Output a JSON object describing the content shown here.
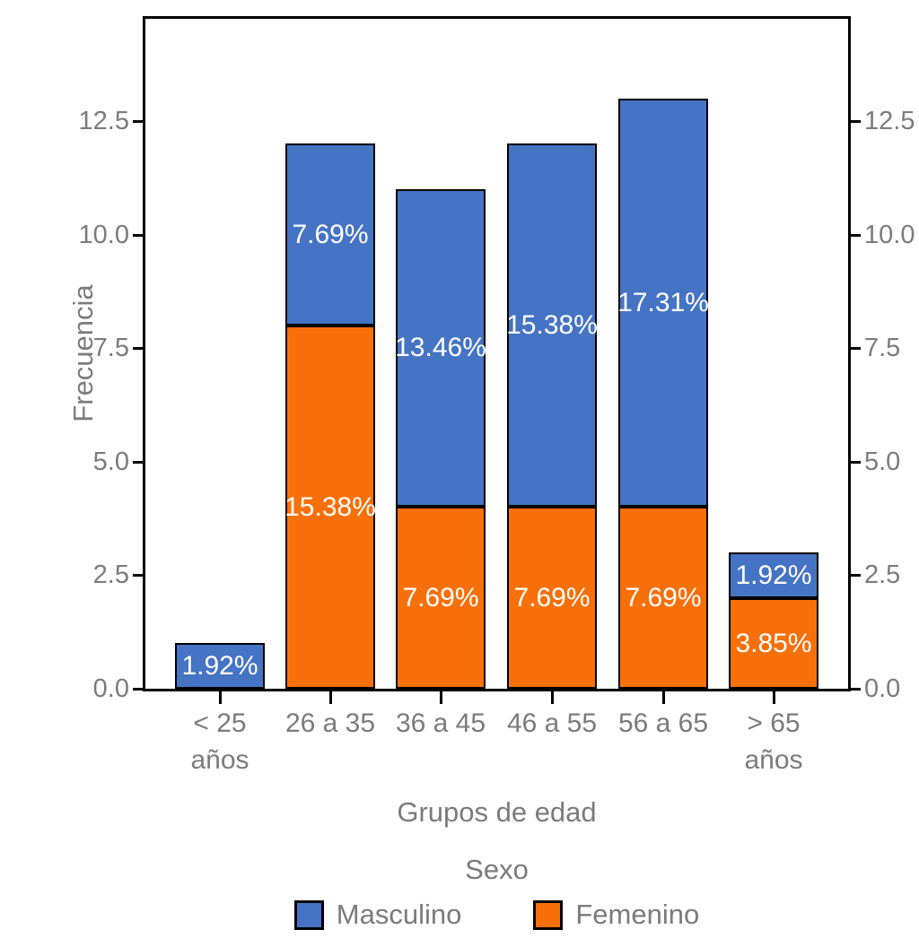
{
  "chart_data": {
    "type": "bar",
    "stacked": true,
    "orientation": "vertical",
    "title": "",
    "xlabel": "Grupos de edad",
    "ylabel": "Frecuencia",
    "ylim": [
      0,
      14.75
    ],
    "grid": false,
    "dual_y_axis": true,
    "axis_text_color": "#7b7b7b",
    "frame_color": "#000000",
    "bar_label_color": "#ffffff",
    "yticks": [
      {
        "value": 0,
        "label": "0.0"
      },
      {
        "value": 2.5,
        "label": "2.5"
      },
      {
        "value": 5,
        "label": "5.0"
      },
      {
        "value": 7.5,
        "label": "7.5"
      },
      {
        "value": 10,
        "label": "10.0"
      },
      {
        "value": 12.5,
        "label": "12.5"
      }
    ],
    "series_colors": {
      "Masculino": "#4674C4",
      "Femenino": "#F8700A"
    },
    "categories": [
      "< 25 años",
      "26 a 35",
      "36 a 45",
      "46 a 55",
      "56 a 65",
      "> 65 años"
    ],
    "bars": [
      {
        "category_lines": [
          "< 25",
          "años"
        ],
        "total": 1,
        "segments": [
          {
            "series": "Masculino",
            "value": 1,
            "pct_label": "1.92%"
          }
        ]
      },
      {
        "category_lines": [
          "26 a 35"
        ],
        "total": 12,
        "segments": [
          {
            "series": "Femenino",
            "value": 8,
            "pct_label": "15.38%"
          },
          {
            "series": "Masculino",
            "value": 4,
            "pct_label": "7.69%"
          }
        ]
      },
      {
        "category_lines": [
          "36 a 45"
        ],
        "total": 11,
        "segments": [
          {
            "series": "Femenino",
            "value": 4,
            "pct_label": "7.69%"
          },
          {
            "series": "Masculino",
            "value": 7,
            "pct_label": "13.46%"
          }
        ]
      },
      {
        "category_lines": [
          "46 a 55"
        ],
        "total": 12,
        "segments": [
          {
            "series": "Femenino",
            "value": 4,
            "pct_label": "7.69%"
          },
          {
            "series": "Masculino",
            "value": 8,
            "pct_label": "15.38%"
          }
        ]
      },
      {
        "category_lines": [
          "56 a 65"
        ],
        "total": 13,
        "segments": [
          {
            "series": "Femenino",
            "value": 4,
            "pct_label": "7.69%"
          },
          {
            "series": "Masculino",
            "value": 9,
            "pct_label": "17.31%"
          }
        ]
      },
      {
        "category_lines": [
          "> 65",
          "años"
        ],
        "total": 3,
        "segments": [
          {
            "series": "Femenino",
            "value": 2,
            "pct_label": "3.85%"
          },
          {
            "series": "Masculino",
            "value": 1,
            "pct_label": "1.92%"
          }
        ]
      }
    ],
    "legend": {
      "title": "Sexo",
      "position": "bottom",
      "entries": [
        {
          "label": "Masculino",
          "color": "#4674C4"
        },
        {
          "label": "Femenino",
          "color": "#F8700A"
        }
      ]
    }
  }
}
